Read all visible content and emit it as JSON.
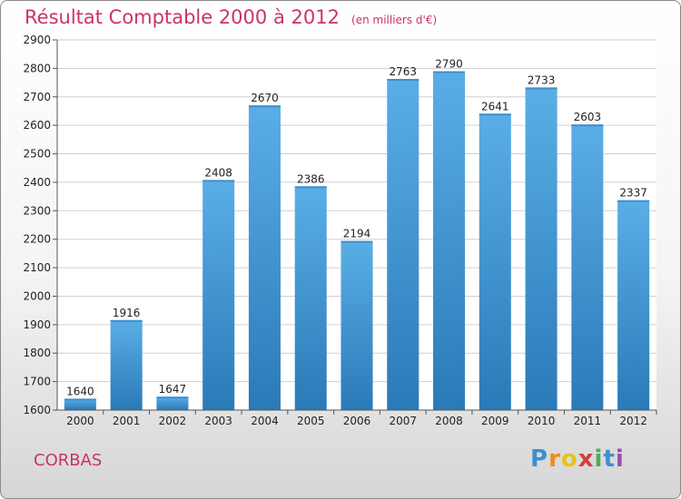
{
  "chart_data": {
    "type": "bar",
    "title": "Résultat Comptable 2000 à 2012",
    "subtitle": "(en milliers d'€)",
    "categories": [
      "2000",
      "2001",
      "2002",
      "2003",
      "2004",
      "2005",
      "2006",
      "2007",
      "2008",
      "2009",
      "2010",
      "2011",
      "2012"
    ],
    "values": [
      1640,
      1916,
      1647,
      2408,
      2670,
      2386,
      2194,
      2763,
      2790,
      2641,
      2733,
      2603,
      2337
    ],
    "ylim": [
      1600,
      2900
    ],
    "yticks": [
      1600,
      1700,
      1800,
      1900,
      2000,
      2100,
      2200,
      2300,
      2400,
      2500,
      2600,
      2700,
      2800,
      2900
    ],
    "xlabel": "",
    "ylabel": "",
    "grid": true,
    "bar_color_top": "#5aaee6",
    "bar_color_bottom": "#2a7ab8"
  },
  "location": "CORBAS",
  "brand": {
    "letters": [
      "P",
      "r",
      "o",
      "x",
      "i",
      "t",
      "i"
    ],
    "colors": [
      "#3f8fd0",
      "#f08a1c",
      "#e8c21a",
      "#d93c3c",
      "#4caf50",
      "#3f8fd0",
      "#9a4fb0"
    ]
  }
}
